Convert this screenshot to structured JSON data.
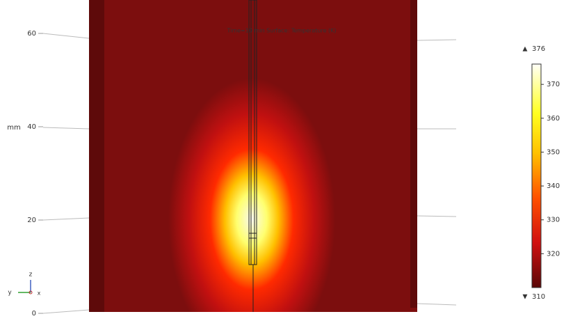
{
  "plot": {
    "title": "Time=10 min  Surface: Temperature (K)",
    "z_unit": "mm",
    "zlim": [
      0,
      60
    ],
    "zticks": [
      0,
      20,
      40,
      60
    ],
    "triad": {
      "x": "x",
      "y": "y",
      "z": "z"
    }
  },
  "colorbar": {
    "max": 376,
    "min": 310,
    "ticks": [
      320,
      330,
      340,
      350,
      360,
      370
    ]
  }
}
